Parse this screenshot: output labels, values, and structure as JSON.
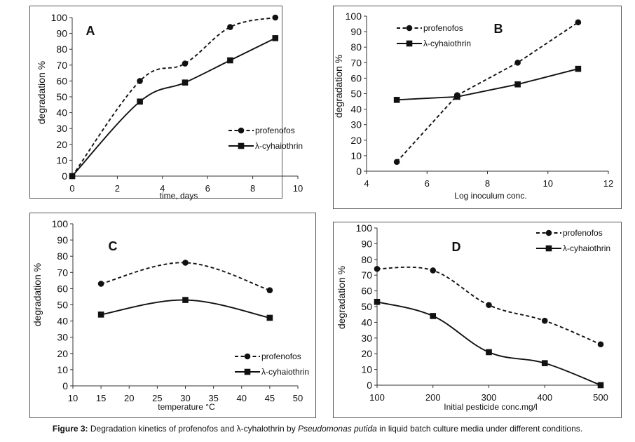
{
  "figure": {
    "caption_label": "Figure 3:",
    "caption_text_1": " Degradation kinetics of profenofos and λ-cyhalothrin by ",
    "caption_species": "Pseudomonas putida",
    "caption_text_2": " in liquid batch culture media under different conditions."
  },
  "chart_data": [
    {
      "id": "A",
      "panel_letter": "A",
      "type": "line",
      "xlabel": "time, days",
      "ylabel": "degradation %",
      "xlim": [
        0,
        10
      ],
      "ylim": [
        0,
        100
      ],
      "xticks": [
        0,
        2,
        4,
        6,
        8,
        10
      ],
      "yticks": [
        0,
        10,
        20,
        30,
        40,
        50,
        60,
        70,
        80,
        90,
        100
      ],
      "legend_position": "bottom-right",
      "series": [
        {
          "name": "profenofos",
          "style": "dashed",
          "marker": "circle",
          "x": [
            0,
            3,
            5,
            7,
            9
          ],
          "values": [
            0,
            60,
            71,
            94,
            100
          ]
        },
        {
          "name": "λ-cyhaiothrin",
          "style": "solid",
          "marker": "square",
          "x": [
            0,
            3,
            5,
            7,
            9
          ],
          "values": [
            0,
            47,
            59,
            73,
            87
          ]
        }
      ]
    },
    {
      "id": "B",
      "panel_letter": "B",
      "type": "line",
      "xlabel": "Log inoculum conc.",
      "ylabel": "degradation %",
      "xlim": [
        4,
        12
      ],
      "ylim": [
        0,
        100
      ],
      "xticks": [
        4,
        6,
        8,
        10,
        12
      ],
      "yticks": [
        0,
        10,
        20,
        30,
        40,
        50,
        60,
        70,
        80,
        90,
        100
      ],
      "legend_position": "top-left",
      "series": [
        {
          "name": "profenofos",
          "style": "dashed",
          "marker": "circle",
          "x": [
            5,
            7,
            9,
            11
          ],
          "values": [
            6,
            49,
            70,
            96
          ]
        },
        {
          "name": "λ-cyhaiothrin",
          "style": "solid",
          "marker": "square",
          "x": [
            5,
            7,
            9,
            11
          ],
          "values": [
            46,
            48,
            56,
            66
          ]
        }
      ]
    },
    {
      "id": "C",
      "panel_letter": "C",
      "type": "line",
      "xlabel": "temperature °C",
      "ylabel": "degradation %",
      "xlim": [
        10,
        50
      ],
      "ylim": [
        0,
        100
      ],
      "xticks": [
        10,
        15,
        20,
        25,
        30,
        35,
        40,
        45,
        50
      ],
      "yticks": [
        0,
        10,
        20,
        30,
        40,
        50,
        60,
        70,
        80,
        90,
        100
      ],
      "legend_position": "bottom-right",
      "series": [
        {
          "name": "profenofos",
          "style": "dashed",
          "marker": "circle",
          "x": [
            15,
            30,
            45
          ],
          "values": [
            63,
            76,
            59
          ]
        },
        {
          "name": "λ-cyhaiothrin",
          "style": "solid",
          "marker": "square",
          "x": [
            15,
            30,
            45
          ],
          "values": [
            44,
            53,
            42
          ]
        }
      ]
    },
    {
      "id": "D",
      "panel_letter": "D",
      "type": "line",
      "xlabel": "Initial pesticide conc.mg/l",
      "ylabel": "degradation %",
      "xlim": [
        100,
        500
      ],
      "ylim": [
        0,
        100
      ],
      "xticks": [
        100,
        200,
        300,
        400,
        500
      ],
      "yticks": [
        0,
        10,
        20,
        30,
        40,
        50,
        60,
        70,
        80,
        90,
        100
      ],
      "legend_position": "top-right",
      "series": [
        {
          "name": "profenofos",
          "style": "dashed",
          "marker": "circle",
          "x": [
            100,
            200,
            300,
            400,
            500
          ],
          "values": [
            74,
            73,
            51,
            41,
            26
          ]
        },
        {
          "name": "λ-cyhaiothrin",
          "style": "solid",
          "marker": "square",
          "x": [
            100,
            200,
            300,
            400,
            500
          ],
          "values": [
            53,
            44,
            21,
            14,
            0
          ]
        }
      ]
    }
  ]
}
